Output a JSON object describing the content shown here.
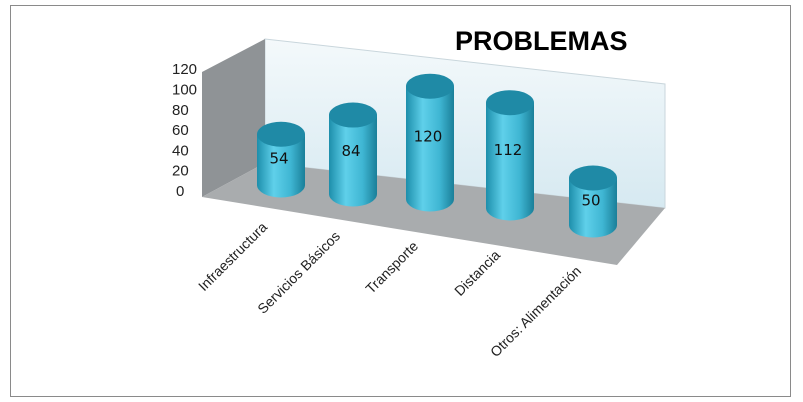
{
  "chart_data": {
    "type": "bar",
    "style": "3d-cylinder",
    "title": "PROBLEMAS",
    "categories": [
      "Infraestructura",
      "Servicios Básicos",
      "Transporte",
      "Distancia",
      "Otros: Alimentación"
    ],
    "values": [
      54,
      84,
      120,
      112,
      50
    ],
    "data_labels": [
      "54",
      "84",
      "120",
      "112",
      "50"
    ],
    "y_ticks": [
      "0",
      "20",
      "40",
      "60",
      "80",
      "100",
      "120"
    ],
    "ylim": [
      0,
      120
    ],
    "xlabel": "",
    "ylabel": "",
    "legend": "none",
    "colors": {
      "bar_body": "#3fb6d3",
      "bar_top": "#1f8aa6",
      "back_wall": "#e6f2f7",
      "side_wall": "#8f9396",
      "floor": "#a9acae"
    }
  }
}
